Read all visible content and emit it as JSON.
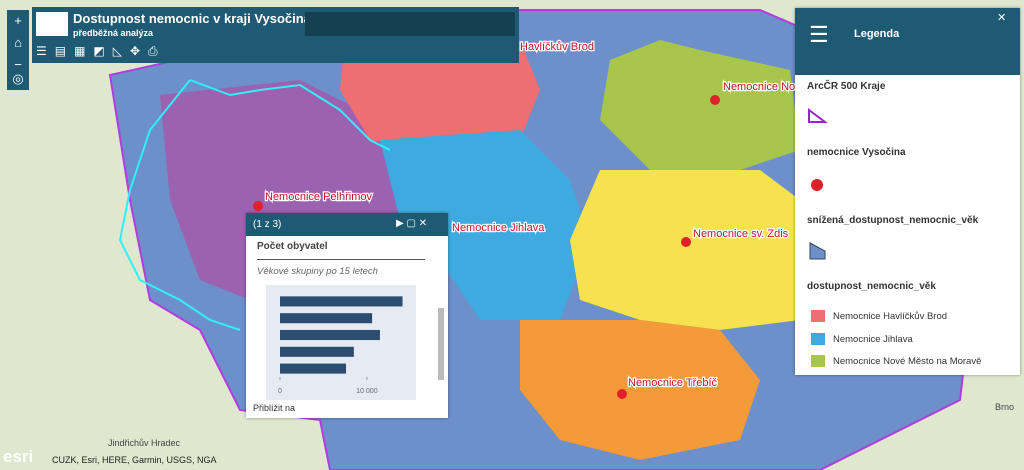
{
  "header": {
    "title": "Dostupnost nemocnic v kraji Vysočina",
    "subtitle": "předběžná analýza"
  },
  "map_labels": [
    "Havlíčkův Brod",
    "Nemocnice No",
    "Nemocnice Pelhřimov",
    "Nemocnice Jihlava",
    "Nemocnice sv. Zdis",
    "Nemocnice Třebíč",
    "Jindřichův Hradec",
    "Brno"
  ],
  "popup": {
    "pager": "(1 z 3)",
    "field": "Počet obyvatel",
    "zoom": "Přiblížit na",
    "chart_data": {
      "type": "bar",
      "title": "Věkové skupiny po 15 letech",
      "values": [
        14100,
        10600,
        11500,
        8500,
        7600
      ],
      "color": "#2b4d70",
      "xlim": [
        0,
        14500
      ],
      "xticks": [
        0,
        {
          "value": 10000,
          "label": "10 000"
        }
      ]
    }
  },
  "legend": {
    "title": "Legenda",
    "layers": [
      "ArcČR 500 Kraje",
      "nemocnice Vysočina",
      "snížená_dostupnost_nemocnic_věk",
      "dostupnost_nemocnic_věk"
    ],
    "classes": [
      "Nemocnice Havlíčkův Brod",
      "Nemocnice Jihlava",
      "Nemocnice Nové Město na Moravě"
    ]
  },
  "attribution": "CUZK, Esri, HERE, Garmin, USGS, NGA",
  "logo": "esri"
}
